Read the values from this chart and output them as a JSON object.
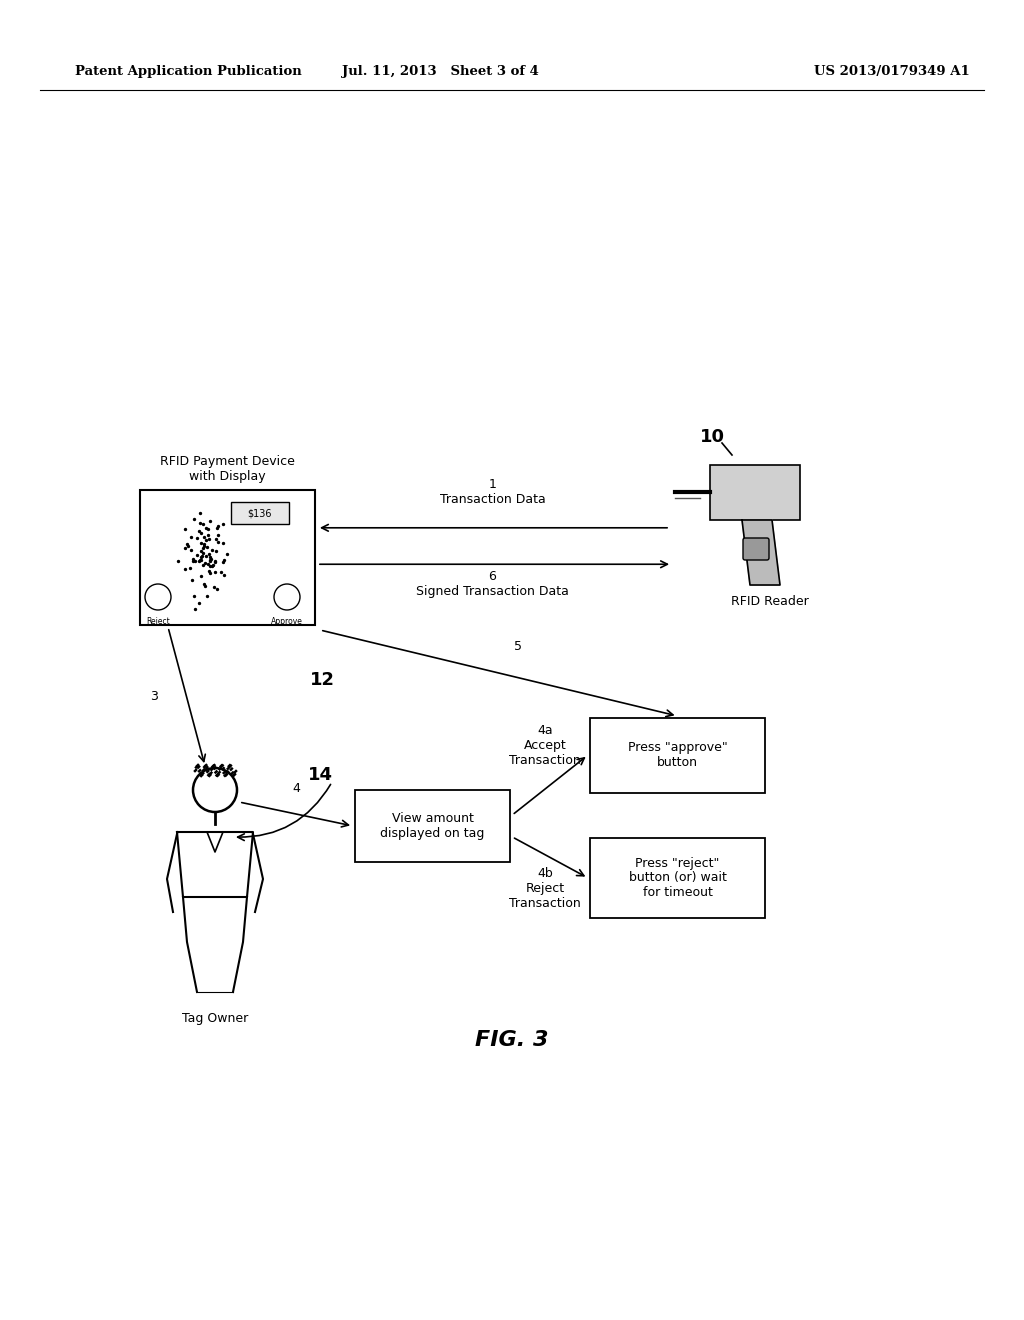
{
  "bg_color": "#ffffff",
  "header_left": "Patent Application Publication",
  "header_mid": "Jul. 11, 2013   Sheet 3 of 4",
  "header_right": "US 2013/0179349 A1",
  "fig_label": "FIG. 3",
  "rfid_device_label": "RFID Payment Device\nwith Display",
  "rfid_reader_label": "RFID Reader",
  "tag_owner_label": "Tag Owner",
  "ref_10": "10",
  "ref_12": "12",
  "ref_14": "14",
  "arrow1_label": "1\nTransaction Data",
  "arrow6_label": "6\nSigned Transaction Data",
  "arrow3_label": "3",
  "arrow4_label": "4",
  "arrow4a_label": "4a\nAccept\nTransaction",
  "arrow4b_label": "4b\nReject\nTransaction",
  "arrow5_label": "5",
  "box_view_label": "View amount\ndisplayed on tag",
  "box_approve_label": "Press \"approve\"\nbutton",
  "box_reject_label": "Press \"reject\"\nbutton (or) wait\nfor timeout",
  "dollar_label": "$136"
}
